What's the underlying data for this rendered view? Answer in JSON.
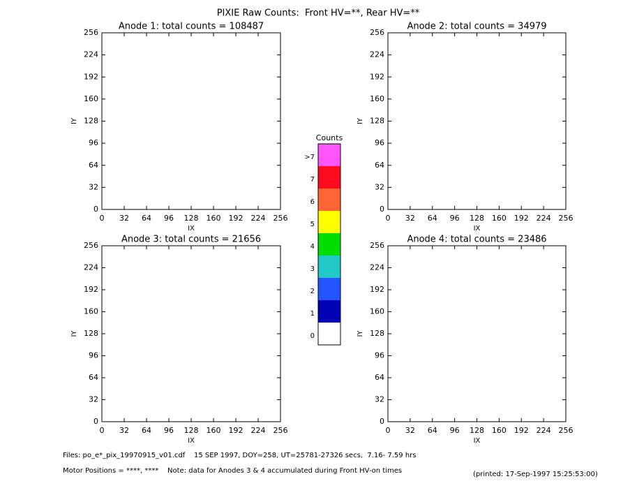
{
  "title": "PIXIE Raw Counts:  Front HV=**, Rear HV=**",
  "chart_data": [
    {
      "type": "heatmap",
      "title": "Anode 1: total counts = 108487",
      "xlabel": "IX",
      "ylabel": "IY",
      "xlim": [
        0,
        256
      ],
      "ylim": [
        0,
        256
      ],
      "xticks": [
        0,
        32,
        64,
        96,
        128,
        160,
        192,
        224,
        256
      ],
      "yticks": [
        0,
        32,
        64,
        96,
        128,
        160,
        192,
        224,
        256
      ]
    },
    {
      "type": "heatmap",
      "title": "Anode 2: total counts = 34979",
      "xlabel": "IX",
      "ylabel": "IY",
      "xlim": [
        0,
        256
      ],
      "ylim": [
        0,
        256
      ],
      "xticks": [
        0,
        32,
        64,
        96,
        128,
        160,
        192,
        224,
        256
      ],
      "yticks": [
        0,
        32,
        64,
        96,
        128,
        160,
        192,
        224,
        256
      ]
    },
    {
      "type": "heatmap",
      "title": "Anode 3: total counts = 21656",
      "xlabel": "IX",
      "ylabel": "IY",
      "xlim": [
        0,
        256
      ],
      "ylim": [
        0,
        256
      ],
      "xticks": [
        0,
        32,
        64,
        96,
        128,
        160,
        192,
        224,
        256
      ],
      "yticks": [
        0,
        32,
        64,
        96,
        128,
        160,
        192,
        224,
        256
      ]
    },
    {
      "type": "heatmap",
      "title": "Anode 4: total counts = 23486",
      "xlabel": "IX",
      "ylabel": "IY",
      "xlim": [
        0,
        256
      ],
      "ylim": [
        0,
        256
      ],
      "xticks": [
        0,
        32,
        64,
        96,
        128,
        160,
        192,
        224,
        256
      ],
      "yticks": [
        0,
        32,
        64,
        96,
        128,
        160,
        192,
        224,
        256
      ]
    }
  ],
  "colorbar": {
    "title": "Counts",
    "levels": [
      {
        "label": ">7",
        "color": "#ff55ff"
      },
      {
        "label": "7",
        "color": "#ff0a1e"
      },
      {
        "label": "6",
        "color": "#ff6633"
      },
      {
        "label": "5",
        "color": "#ffff00"
      },
      {
        "label": "4",
        "color": "#00dd00"
      },
      {
        "label": "3",
        "color": "#22c8c8"
      },
      {
        "label": "2",
        "color": "#2255ff"
      },
      {
        "label": "1",
        "color": "#0000b4"
      },
      {
        "label": "0",
        "color": "#ffffff"
      }
    ]
  },
  "footer": {
    "files": "Files: po_e*_pix_19970915_v01.cdf    15 SEP 1997, DOY=258, UT=25781-27326 secs,  7.16- 7.59 hrs",
    "motor": "Motor Positions = ****, ****    Note: data for Anodes 3 & 4 accumulated during Front HV-on times",
    "printed": "(printed: 17-Sep-1997 15:25:53:00)"
  }
}
